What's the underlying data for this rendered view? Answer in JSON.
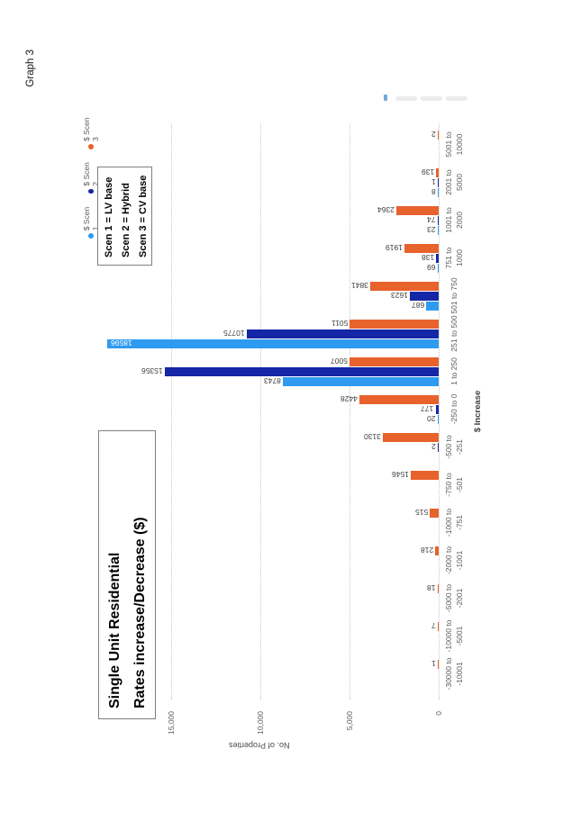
{
  "page_label": "Graph 3",
  "chart_data": {
    "type": "bar",
    "orientation": "clustered column chart rotated 90 degrees counter-clockwise on the page",
    "title_lines": [
      "Single Unit Residential",
      "Rates increase/Decrease ($)"
    ],
    "xlabel": "$ Increase",
    "ylabel": "No. of Properties",
    "ylim": [
      0,
      15000
    ],
    "ytick_labels": [
      "15,000",
      "10,000",
      "5,000",
      "0"
    ],
    "ytick_values": [
      15000,
      10000,
      5000,
      0
    ],
    "grid": "dotted",
    "legend_position": "top-right",
    "categories": [
      {
        "label_lines": [
          "-30000 to",
          "-10001"
        ]
      },
      {
        "label_lines": [
          "-10000 to",
          "-5001"
        ]
      },
      {
        "label_lines": [
          "-5000 to",
          "-2001"
        ]
      },
      {
        "label_lines": [
          "-2000 to",
          "-1001"
        ]
      },
      {
        "label_lines": [
          "-1000 to",
          "-751"
        ]
      },
      {
        "label_lines": [
          "-750 to",
          "-501"
        ]
      },
      {
        "label_lines": [
          "-500 to",
          "-251"
        ]
      },
      {
        "label_lines": [
          "-250 to 0"
        ]
      },
      {
        "label_lines": [
          "1 to 250"
        ]
      },
      {
        "label_lines": [
          "251 to 500"
        ]
      },
      {
        "label_lines": [
          "501 to 750"
        ]
      },
      {
        "label_lines": [
          "751 to",
          "1000"
        ]
      },
      {
        "label_lines": [
          "1001 to",
          "2000"
        ]
      },
      {
        "label_lines": [
          "2001 to",
          "5000"
        ]
      },
      {
        "label_lines": [
          "5001 to",
          "10000"
        ]
      }
    ],
    "series": [
      {
        "name": "$ Scen 1",
        "color": "#2E9BF0",
        "values": [
          null,
          null,
          null,
          null,
          null,
          null,
          null,
          20,
          8743,
          18596,
          687,
          69,
          23,
          8,
          null
        ]
      },
      {
        "name": "$ Scen 2",
        "color": "#1527A6",
        "values": [
          null,
          null,
          null,
          null,
          null,
          null,
          2,
          177,
          15356,
          10775,
          1623,
          138,
          74,
          1,
          null
        ]
      },
      {
        "name": "$ Scen 3",
        "color": "#E8622C",
        "values": [
          1,
          7,
          18,
          218,
          515,
          1546,
          3130,
          4428,
          5007,
          5011,
          3841,
          1919,
          2364,
          139,
          2
        ]
      }
    ],
    "scenario_key": [
      "Scen 1 = LV base",
      "Scen 2 = Hybrid",
      "Scen 3 = CV base"
    ]
  }
}
